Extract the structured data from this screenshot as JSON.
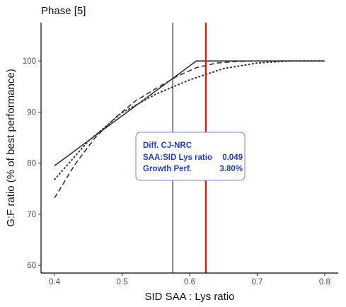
{
  "chart_data": {
    "type": "line",
    "title": "Phase [5]",
    "xlabel": "SID SAA : Lys ratio",
    "ylabel": "G:F ratio (% of best performance)",
    "xlim": [
      0.38,
      0.82
    ],
    "ylim": [
      58.5,
      107.5
    ],
    "x_ticks": [
      0.4,
      0.5,
      0.6,
      0.7,
      0.8
    ],
    "x_tick_labels": [
      "0.4",
      "0.5",
      "0.6",
      "0.7",
      "0.8"
    ],
    "y_ticks": [
      60,
      70,
      80,
      90,
      100
    ],
    "y_tick_labels": [
      "60",
      "70",
      "80",
      "90",
      "100"
    ],
    "grid": false,
    "series": [
      {
        "style": "solid",
        "x": [
          0.4,
          0.61,
          0.8
        ],
        "y": [
          79.5,
          100,
          100
        ]
      },
      {
        "style": "dashed",
        "x": [
          0.4,
          0.43,
          0.46,
          0.49,
          0.52,
          0.55,
          0.58,
          0.61,
          0.64,
          0.67,
          0.7,
          0.75,
          0.8
        ],
        "y": [
          73.2,
          79.7,
          85.0,
          88.9,
          92.2,
          94.6,
          96.9,
          98.7,
          99.6,
          99.9,
          100,
          100,
          100
        ]
      },
      {
        "style": "dotted",
        "x": [
          0.4,
          0.45,
          0.5,
          0.55,
          0.6,
          0.65,
          0.7,
          0.75,
          0.8
        ],
        "y": [
          76.8,
          84.3,
          89.9,
          93.5,
          96.3,
          98.5,
          99.6,
          100,
          100
        ]
      }
    ],
    "vertical_lines": [
      {
        "x": 0.575,
        "color": "#000000"
      },
      {
        "x": 0.624,
        "color": "#ff0000"
      }
    ],
    "annotation": {
      "title": "Diff. CJ-NRC",
      "rows": [
        {
          "label": "SAA:SID Lys ratio",
          "value": "0.049"
        },
        {
          "label": "Growth Perf.",
          "value": "3.80%"
        }
      ],
      "text_color": "#1f3ed1",
      "border_color": "#6f86f0"
    },
    "colors": {
      "line": "#333333",
      "axis": "#000000"
    }
  }
}
